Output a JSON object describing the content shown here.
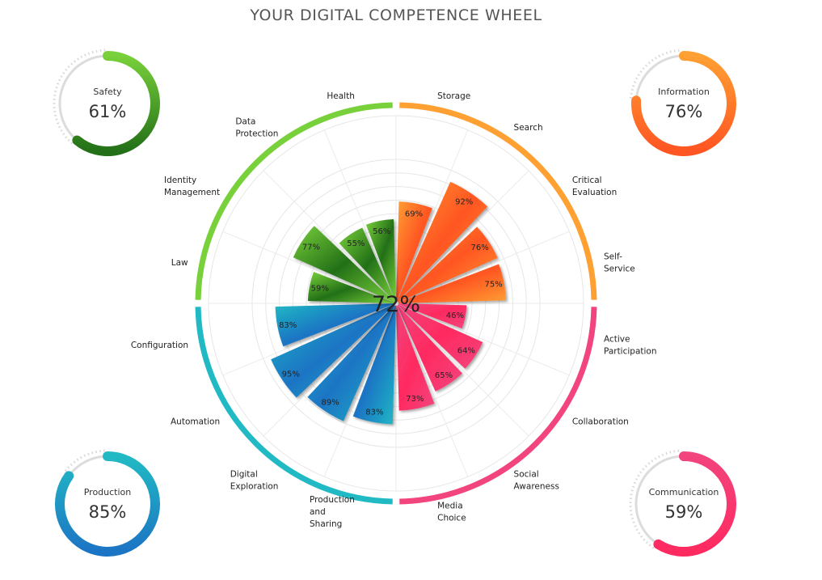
{
  "title": "YOUR DIGITAL COMPETENCE WHEEL",
  "chart_data": {
    "type": "polar-bar",
    "overall": "72%",
    "scale_max": 100,
    "areas": [
      {
        "name": "Information",
        "score": "76%",
        "color_light": "#ffa033",
        "color_dark": "#ff5522",
        "gauge": "top-right",
        "competences": [
          {
            "label": [
              "Storage"
            ],
            "value": 69
          },
          {
            "label": [
              "Search"
            ],
            "value": 92
          },
          {
            "label": [
              "Critical",
              "Evaluation"
            ],
            "value": 76
          },
          {
            "label": [
              "Self-",
              "Service"
            ],
            "value": 75
          }
        ]
      },
      {
        "name": "Communication",
        "score": "59%",
        "color_light": "#f2447d",
        "color_dark": "#ff2a60",
        "gauge": "bottom-right",
        "competences": [
          {
            "label": [
              "Active",
              "Participation"
            ],
            "value": 46
          },
          {
            "label": [
              "Collaboration"
            ],
            "value": 64
          },
          {
            "label": [
              "Social",
              "Awareness"
            ],
            "value": 65
          },
          {
            "label": [
              "Media",
              "Choice"
            ],
            "value": 73
          }
        ]
      },
      {
        "name": "Production",
        "score": "85%",
        "color_light": "#21bac4",
        "color_dark": "#1c74c4",
        "gauge": "bottom-left",
        "competences": [
          {
            "label": [
              "Production",
              "and",
              "Sharing"
            ],
            "value": 83
          },
          {
            "label": [
              "Digital",
              "Exploration"
            ],
            "value": 89
          },
          {
            "label": [
              "Automation"
            ],
            "value": 95
          },
          {
            "label": [
              "Configuration"
            ],
            "value": 83
          }
        ]
      },
      {
        "name": "Safety",
        "score": "61%",
        "color_light": "#78d03a",
        "color_dark": "#237018",
        "gauge": "top-left",
        "competences": [
          {
            "label": [
              "Law"
            ],
            "value": 59
          },
          {
            "label": [
              "Identity",
              "Management"
            ],
            "value": 77
          },
          {
            "label": [
              "Data",
              "Protection"
            ],
            "value": 55
          },
          {
            "label": [
              "Health"
            ],
            "value": 56
          }
        ]
      }
    ]
  }
}
